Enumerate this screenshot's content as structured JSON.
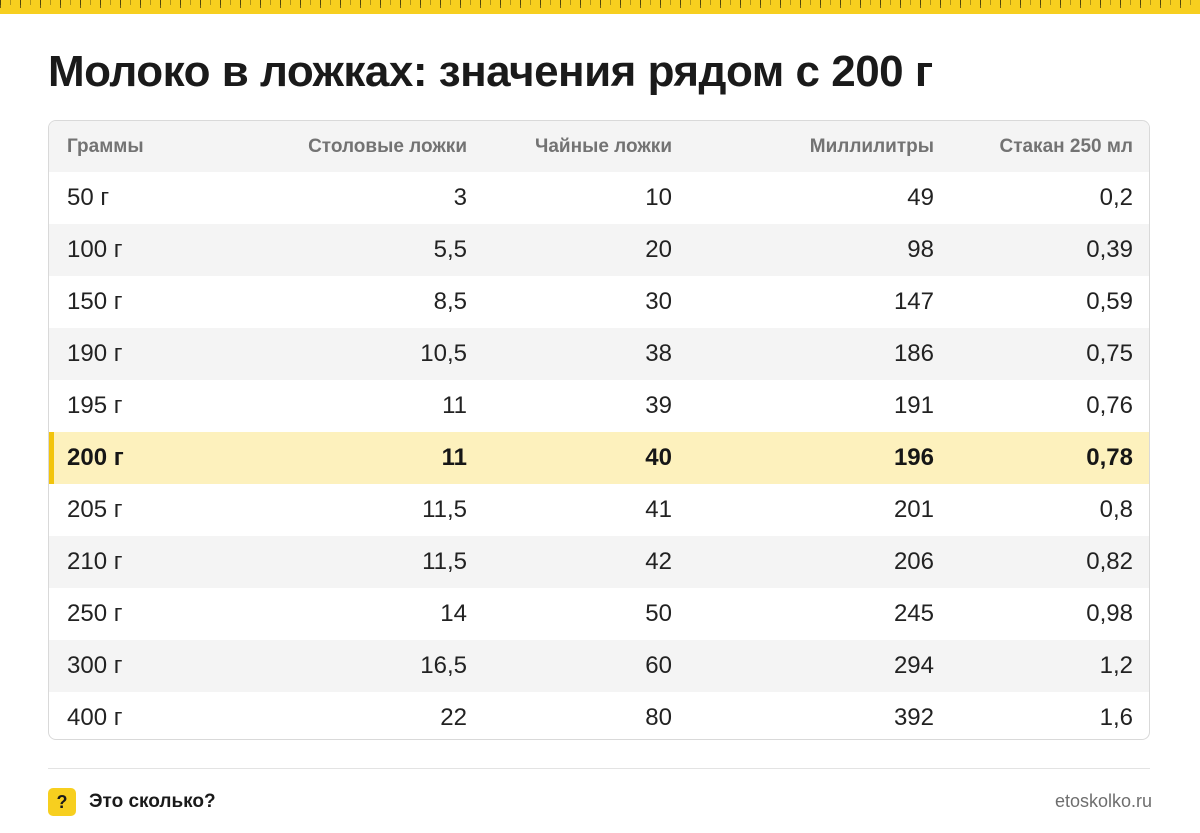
{
  "title": "Молоко в ложках: значения рядом с 200 г",
  "table": {
    "headers": [
      "Граммы",
      "Столовые ложки",
      "Чайные ложки",
      "Миллилитры",
      "Стакан 250 мл"
    ],
    "rows": [
      [
        "50 г",
        "3",
        "10",
        "49",
        "0,2"
      ],
      [
        "100 г",
        "5,5",
        "20",
        "98",
        "0,39"
      ],
      [
        "150 г",
        "8,5",
        "30",
        "147",
        "0,59"
      ],
      [
        "190 г",
        "10,5",
        "38",
        "186",
        "0,75"
      ],
      [
        "195 г",
        "11",
        "39",
        "191",
        "0,76"
      ],
      [
        "200 г",
        "11",
        "40",
        "196",
        "0,78"
      ],
      [
        "205 г",
        "11,5",
        "41",
        "201",
        "0,8"
      ],
      [
        "210 г",
        "11,5",
        "42",
        "206",
        "0,82"
      ],
      [
        "250 г",
        "14",
        "50",
        "245",
        "0,98"
      ],
      [
        "300 г",
        "16,5",
        "60",
        "294",
        "1,2"
      ],
      [
        "400 г",
        "22",
        "80",
        "392",
        "1,6"
      ]
    ],
    "highlighted_row": 5
  },
  "footer": {
    "badge_icon": "?",
    "brand": "Это сколько?",
    "site": "etoskolko.ru"
  },
  "colors": {
    "accent": "#f7cf1f",
    "highlight_row": "#fdf1bd",
    "highlight_bar": "#f2c40c",
    "stripe": "#f4f4f4"
  }
}
